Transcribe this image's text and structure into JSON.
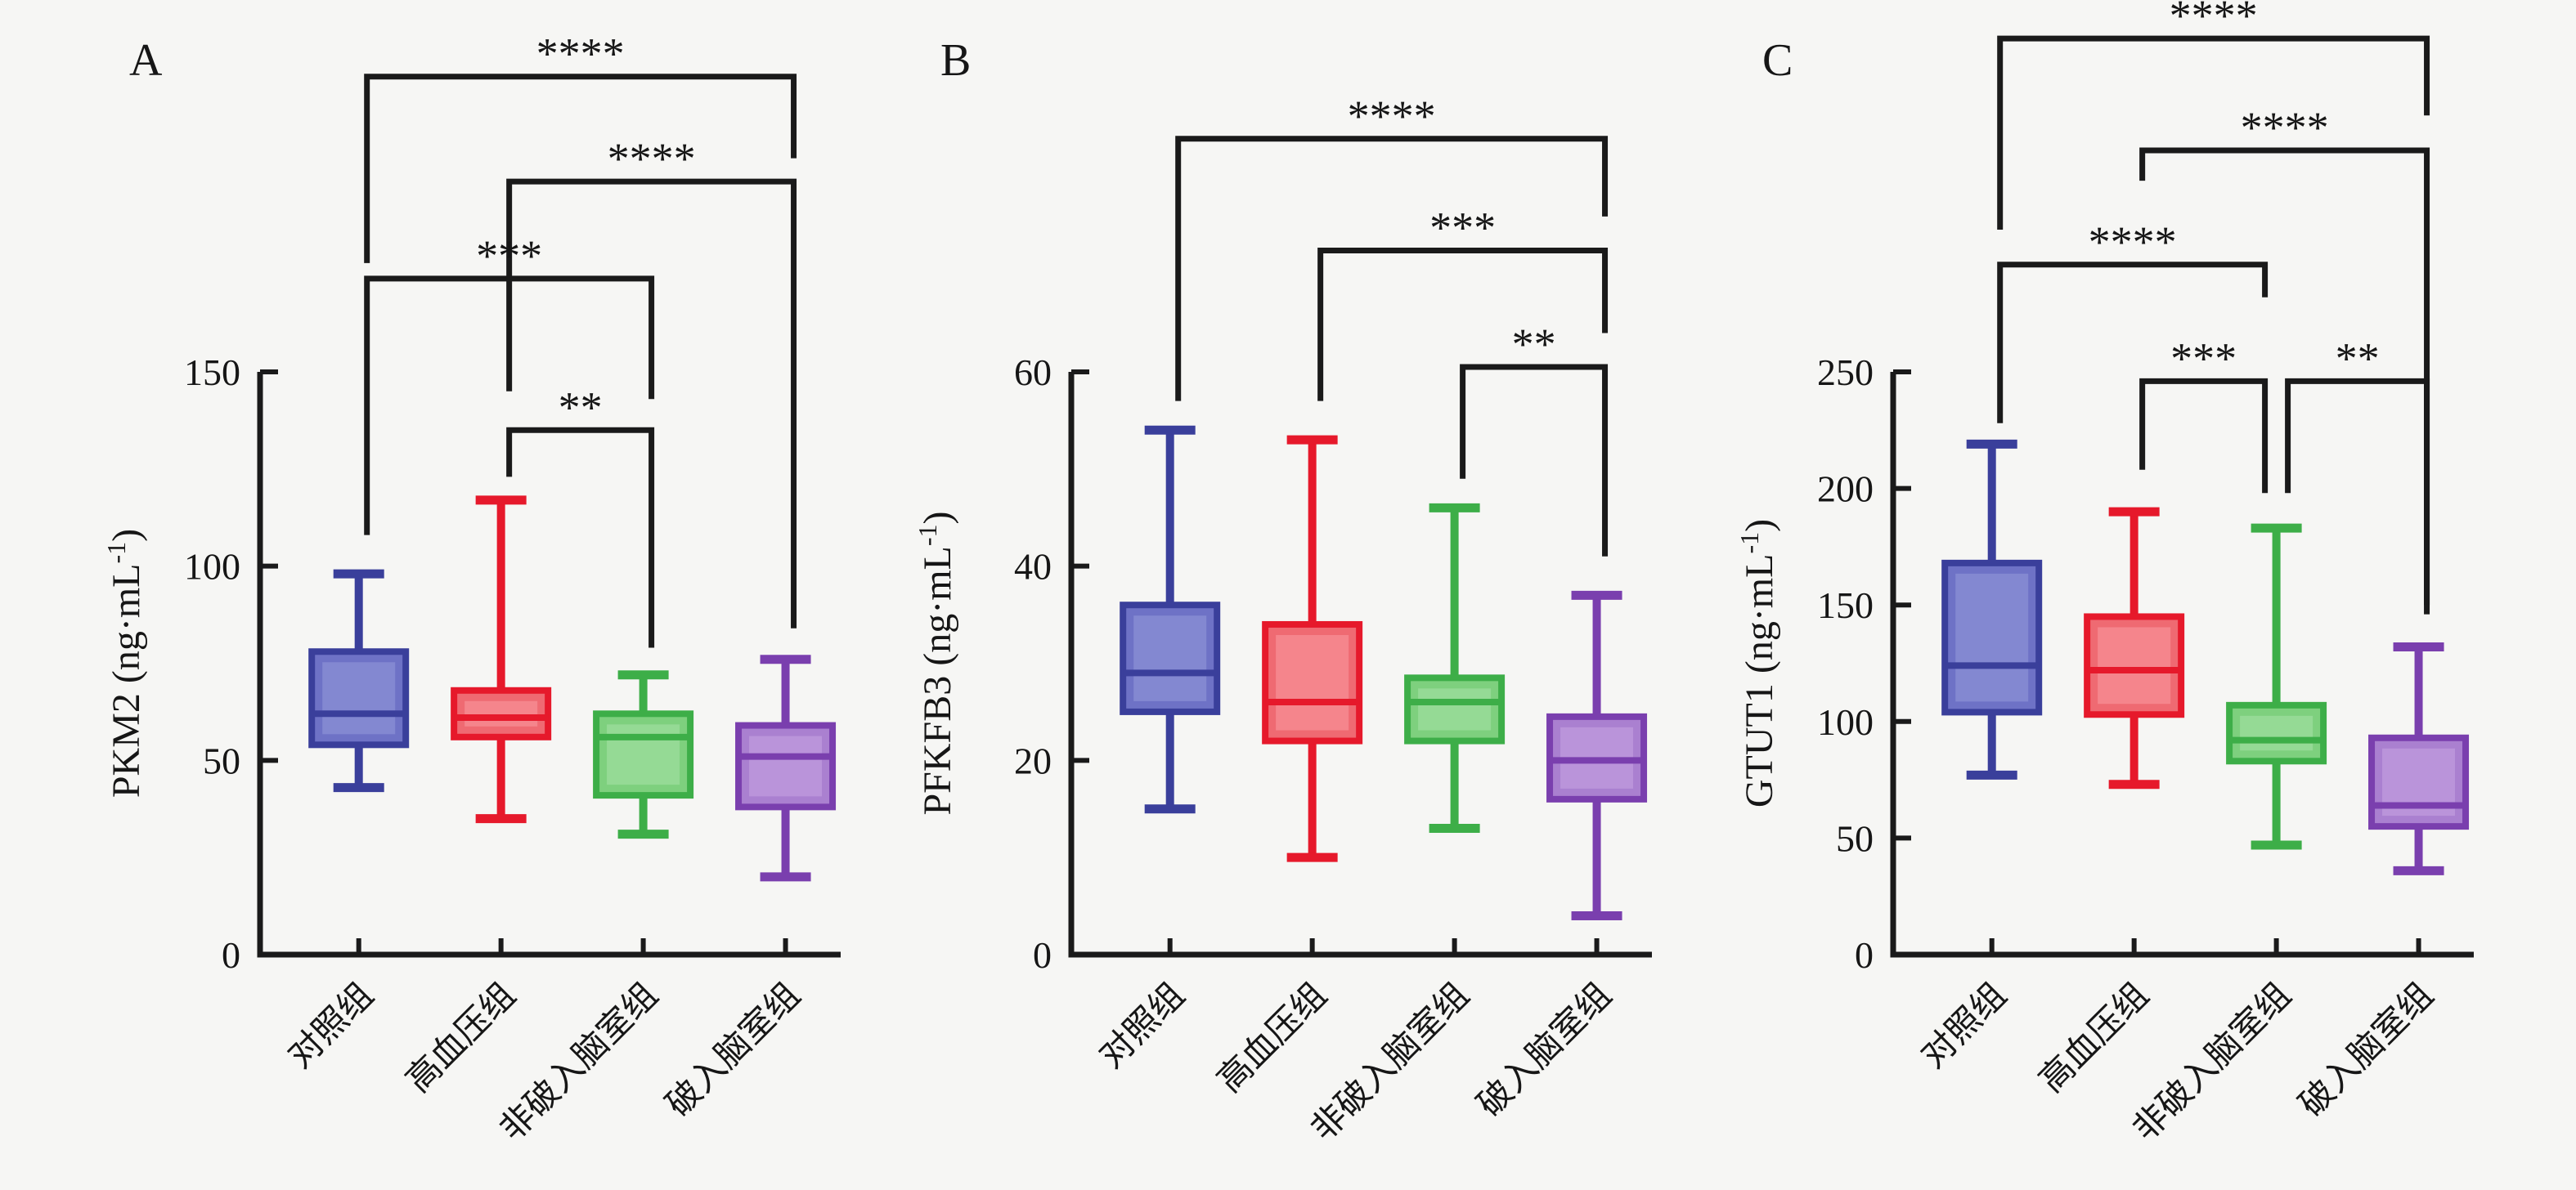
{
  "figure": {
    "background": "#f6f6f4",
    "axis_color": "#1a1a1a",
    "bracket_color": "#1a1a1a",
    "group_colors": [
      {
        "name": "blue",
        "stroke": "#3a3f9b",
        "fill": "#6e72c6",
        "light": "#8489d2"
      },
      {
        "name": "red",
        "stroke": "#e6192b",
        "fill": "#ef6a72",
        "light": "#f4878d"
      },
      {
        "name": "green",
        "stroke": "#3dae48",
        "fill": "#7ed07e",
        "light": "#97da97"
      },
      {
        "name": "purple",
        "stroke": "#7a3fae",
        "fill": "#aa80d0",
        "light": "#bb95da"
      }
    ]
  },
  "chart_data": [
    {
      "type": "box",
      "panel_label": "A",
      "title": "",
      "xlabel": "",
      "ylabel": "PKM2 (ng·mL⁻¹)",
      "ylim": [
        0,
        150
      ],
      "yticks": [
        0,
        50,
        100,
        150
      ],
      "grid": false,
      "legend": "none",
      "categories": [
        "对照组",
        "高血压组",
        "非破入脑室组",
        "破入脑室组"
      ],
      "series": [
        {
          "name": "对照组",
          "whisker_low": 43,
          "q1": 54,
          "median": 62,
          "q3": 78,
          "whisker_high": 98
        },
        {
          "name": "高血压组",
          "whisker_low": 35,
          "q1": 56,
          "median": 61,
          "q3": 68,
          "whisker_high": 117
        },
        {
          "name": "非破入脑室组",
          "whisker_low": 31,
          "q1": 41,
          "median": 56,
          "q3": 62,
          "whisker_high": 72
        },
        {
          "name": "破入脑室组",
          "whisker_low": 20,
          "q1": 38,
          "median": 51,
          "q3": 59,
          "whisker_high": 76
        }
      ],
      "significance": [
        {
          "g1": 0,
          "g2": 3,
          "stars": "****",
          "bar": 226,
          "leg1": 178,
          "leg2": 205
        },
        {
          "g1": 1,
          "g2": 3,
          "stars": "****",
          "bar": 199,
          "leg1": 145,
          "leg2": 84
        },
        {
          "g1": 0,
          "g2": 2,
          "stars": "***",
          "bar": 174,
          "leg1": 108,
          "leg2": 143
        },
        {
          "g1": 1,
          "g2": 2,
          "stars": "**",
          "bar": 135,
          "leg1": 123,
          "leg2": 79
        }
      ]
    },
    {
      "type": "box",
      "panel_label": "B",
      "title": "",
      "xlabel": "",
      "ylabel": "PFKFB3 (ng·mL⁻¹)",
      "ylim": [
        0,
        60
      ],
      "yticks": [
        0,
        20,
        40,
        60
      ],
      "grid": false,
      "legend": "none",
      "categories": [
        "对照组",
        "高血压组",
        "非破入脑室组",
        "破入脑室组"
      ],
      "series": [
        {
          "name": "对照组",
          "whisker_low": 15,
          "q1": 25,
          "median": 29,
          "q3": 36,
          "whisker_high": 54
        },
        {
          "name": "高血压组",
          "whisker_low": 10,
          "q1": 22,
          "median": 26,
          "q3": 34,
          "whisker_high": 53
        },
        {
          "name": "非破入脑室组",
          "whisker_low": 13,
          "q1": 22,
          "median": 26,
          "q3": 28.5,
          "whisker_high": 46
        },
        {
          "name": "破入脑室组",
          "whisker_low": 4,
          "q1": 16,
          "median": 20,
          "q3": 24.5,
          "whisker_high": 37
        }
      ],
      "significance": [
        {
          "g1": 0,
          "g2": 3,
          "stars": "****",
          "bar": 84,
          "leg1": 57,
          "leg2": 76
        },
        {
          "g1": 1,
          "g2": 3,
          "stars": "***",
          "bar": 72.5,
          "leg1": 57,
          "leg2": 64
        },
        {
          "g1": 2,
          "g2": 3,
          "stars": "**",
          "bar": 60.5,
          "leg1": 49,
          "leg2": 41
        }
      ]
    },
    {
      "type": "box",
      "panel_label": "C",
      "title": "",
      "xlabel": "",
      "ylabel": "GTUT1 (ng·mL⁻¹)",
      "ylim": [
        0,
        250
      ],
      "yticks": [
        0,
        50,
        100,
        150,
        200,
        250
      ],
      "grid": false,
      "legend": "none",
      "categories": [
        "对照组",
        "高血压组",
        "非破入脑室组",
        "破入脑室组"
      ],
      "series": [
        {
          "name": "对照组",
          "whisker_low": 77,
          "q1": 104,
          "median": 124,
          "q3": 168,
          "whisker_high": 219
        },
        {
          "name": "高血压组",
          "whisker_low": 73,
          "q1": 103,
          "median": 122,
          "q3": 145,
          "whisker_high": 190
        },
        {
          "name": "非破入脑室组",
          "whisker_low": 47,
          "q1": 83,
          "median": 92,
          "q3": 107,
          "whisker_high": 183
        },
        {
          "name": "破入脑室组",
          "whisker_low": 36,
          "q1": 55,
          "median": 64,
          "q3": 93,
          "whisker_high": 132
        }
      ],
      "significance": [
        {
          "g1": 0,
          "g2": 3,
          "stars": "****",
          "bar": 393,
          "leg1": 311,
          "leg2": 360
        },
        {
          "g1": 1,
          "g2": 3,
          "stars": "****",
          "bar": 345,
          "leg1": 332,
          "leg2": 150
        },
        {
          "g1": 0,
          "g2": 2,
          "stars": "****",
          "bar": 296,
          "leg1": 228,
          "leg2": 282,
          "dx2": -14
        },
        {
          "g1": 1,
          "g2": 2,
          "stars": "***",
          "bar": 246,
          "leg1": 208,
          "leg2": 198,
          "dx2": -14
        },
        {
          "g1": 2,
          "g2": 3,
          "stars": "**",
          "bar": 246,
          "leg1": 198,
          "leg2": 146,
          "dx1": 14
        }
      ]
    }
  ]
}
